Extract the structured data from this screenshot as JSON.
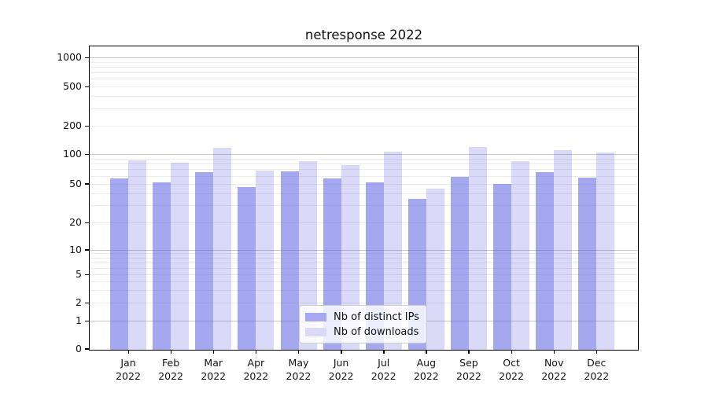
{
  "title": "netresponse 2022",
  "colors": {
    "ips_apparent": "#a7a8ef",
    "downloads_apparent": "#dadaf8",
    "grid_major": "#c6c6c6",
    "grid_minor": "#ececec",
    "spine": "#000000"
  },
  "legend": {
    "entries": [
      "Nb of distinct IPs",
      "Nb of downloads"
    ]
  },
  "chart_data": {
    "type": "bar",
    "title": "netresponse 2022",
    "categories": [
      "Jan",
      "Feb",
      "Mar",
      "Apr",
      "May",
      "Jun",
      "Jul",
      "Aug",
      "Sep",
      "Oct",
      "Nov",
      "Dec"
    ],
    "category_year": "2022",
    "series": [
      {
        "name": "Nb of distinct IPs",
        "color": "#a7a8ef",
        "fill_rgba": "rgba(85,88,225,0.52)",
        "values": [
          56,
          51,
          65,
          46,
          67,
          56,
          51,
          35,
          59,
          50,
          66,
          58
        ]
      },
      {
        "name": "Nb of downloads",
        "color": "#dadaf8",
        "fill_rgba": "rgba(85,88,225,0.22)",
        "values": [
          86,
          82,
          117,
          68,
          85,
          77,
          106,
          44,
          118,
          85,
          110,
          105
        ]
      }
    ],
    "xlabel": "",
    "ylabel": "",
    "yscale": "symlog",
    "yticks": [
      0,
      1,
      2,
      5,
      10,
      20,
      50,
      100,
      200,
      500,
      1000
    ],
    "ytick_labels": [
      "0",
      "1",
      "2",
      "5",
      "10",
      "20",
      "50",
      "100",
      "200",
      "500",
      "1000"
    ],
    "ylim": [
      0,
      1300
    ],
    "grid": true,
    "legend_position": "lower center"
  }
}
